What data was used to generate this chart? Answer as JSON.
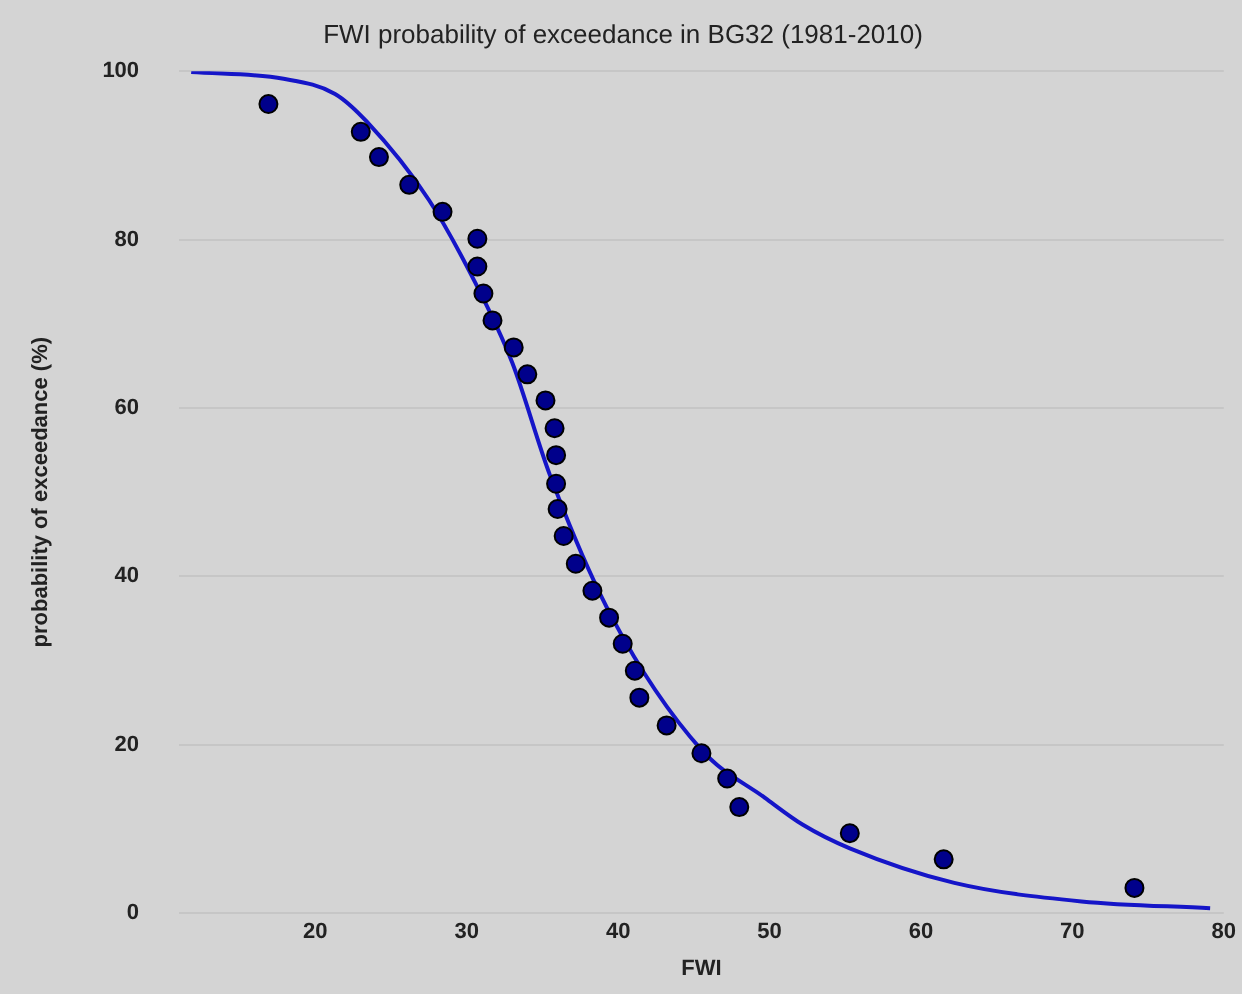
{
  "chart_data": {
    "type": "scatter",
    "title": "FWI probability of exceedance in BG32 (1981-2010)",
    "xlabel": "FWI",
    "ylabel": "probability of exceedance (%)",
    "xlim": [
      11,
      80
    ],
    "xticks": [
      20,
      30,
      40,
      50,
      60,
      70,
      80
    ],
    "ylim": [
      0,
      100
    ],
    "yticks": [
      0,
      20,
      40,
      60,
      80,
      100
    ],
    "grid": "y",
    "legend": false,
    "marker": "circle",
    "series": [
      {
        "color": "#00008b",
        "x": [
          16.9,
          23.0,
          24.2,
          26.2,
          28.4,
          30.7,
          30.7,
          31.1,
          31.7,
          33.1,
          34.0,
          35.2,
          35.8,
          35.9,
          35.9,
          36.0,
          36.4,
          37.2,
          38.3,
          39.4,
          40.3,
          41.1,
          41.4,
          43.2,
          45.5,
          47.2,
          48.0,
          55.3,
          61.5,
          74.1
        ],
        "values": [
          96.1,
          92.8,
          89.8,
          86.5,
          83.3,
          80.1,
          76.8,
          73.6,
          70.4,
          67.2,
          64.0,
          60.9,
          57.6,
          54.4,
          51.0,
          48.0,
          44.8,
          41.5,
          38.3,
          35.1,
          32.0,
          28.8,
          25.6,
          22.3,
          19.0,
          16.0,
          12.6,
          9.5,
          6.4,
          3.0
        ]
      },
      {
        "type": "line",
        "color": "#1515c8",
        "marker": "none",
        "x": [
          11.8,
          17.9,
          21.3,
          23.4,
          27.5,
          30.5,
          33.0,
          35.5,
          39.6,
          45.5,
          49.7,
          52.2,
          55.3,
          62.2,
          70.6,
          79.1
        ],
        "values": [
          99.9,
          99.1,
          97.3,
          94.0,
          84.7,
          75.1,
          65.4,
          52.0,
          35.1,
          19.4,
          13.7,
          10.5,
          7.7,
          3.6,
          1.4,
          0.6
        ]
      }
    ]
  }
}
